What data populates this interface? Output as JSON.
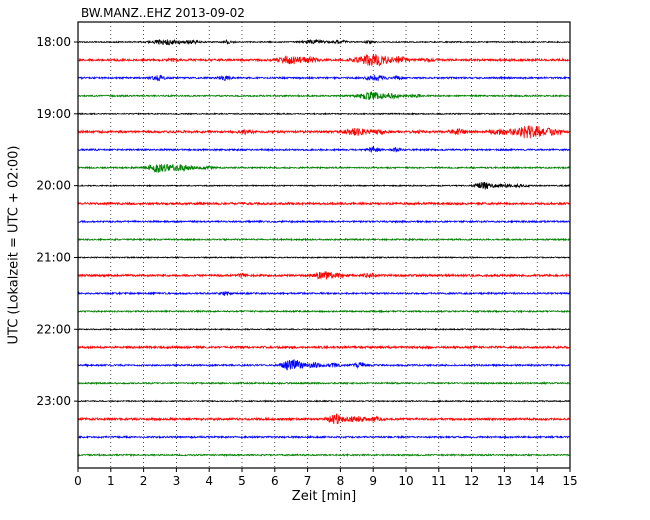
{
  "chart_data": {
    "type": "line",
    "subtype": "seismogram-dayplot",
    "title": "BW.MANZ..EHZ 2013-09-02",
    "xlabel": "Zeit  [min]",
    "ylabel": "UTC (Lokalzeit = UTC + 02:00)",
    "xlim": [
      0,
      15
    ],
    "xticks": [
      0,
      1,
      2,
      3,
      4,
      5,
      6,
      7,
      8,
      9,
      10,
      11,
      12,
      13,
      14,
      15
    ],
    "minutes_per_line": 15,
    "grid": "dotted-vertical",
    "hour_ticks": [
      {
        "label": "18:00",
        "trace_index": 0
      },
      {
        "label": "19:00",
        "trace_index": 4
      },
      {
        "label": "20:00",
        "trace_index": 8
      },
      {
        "label": "21:00",
        "trace_index": 12
      },
      {
        "label": "22:00",
        "trace_index": 16
      },
      {
        "label": "23:00",
        "trace_index": 20
      }
    ],
    "colors": {
      "black": "#000000",
      "red": "#ff0000",
      "blue": "#0000ff",
      "green": "#008000"
    },
    "burst_format": "[center_minute, width_minutes, amplitude_px]",
    "traces": [
      {
        "start": "18:00",
        "color": "#000000",
        "base": 0.55,
        "bursts": [
          [
            2.7,
            0.45,
            2.4
          ],
          [
            3.5,
            0.25,
            1.4
          ],
          [
            4.55,
            0.12,
            1.6
          ],
          [
            7.2,
            0.35,
            1.8
          ],
          [
            8.0,
            0.2,
            1.4
          ],
          [
            8.9,
            0.12,
            1.1
          ]
        ]
      },
      {
        "start": "18:15",
        "color": "#ff0000",
        "base": 1.05,
        "bursts": [
          [
            2.9,
            0.15,
            1.0
          ],
          [
            6.5,
            0.35,
            4.0
          ],
          [
            7.1,
            0.2,
            2.2
          ],
          [
            9.0,
            0.45,
            5.2
          ],
          [
            9.8,
            0.25,
            2.6
          ],
          [
            10.7,
            0.2,
            1.2
          ]
        ]
      },
      {
        "start": "18:30",
        "color": "#0000ff",
        "base": 0.8,
        "bursts": [
          [
            2.45,
            0.18,
            2.4
          ],
          [
            4.45,
            0.18,
            1.8
          ],
          [
            9.1,
            0.28,
            2.6
          ],
          [
            9.8,
            0.15,
            1.5
          ]
        ]
      },
      {
        "start": "18:45",
        "color": "#008000",
        "base": 0.7,
        "bursts": [
          [
            8.9,
            0.35,
            4.0
          ],
          [
            9.6,
            0.25,
            2.2
          ],
          [
            10.3,
            0.2,
            1.0
          ]
        ]
      },
      {
        "start": "19:00",
        "color": "#000000",
        "base": 0.55,
        "bursts": []
      },
      {
        "start": "19:15",
        "color": "#ff0000",
        "base": 1.05,
        "bursts": [
          [
            5.1,
            0.2,
            2.0
          ],
          [
            8.5,
            0.35,
            3.2
          ],
          [
            9.2,
            0.2,
            2.0
          ],
          [
            10.4,
            0.15,
            1.2
          ],
          [
            11.6,
            0.25,
            2.2
          ],
          [
            12.9,
            0.35,
            2.6
          ],
          [
            13.8,
            0.4,
            6.8
          ],
          [
            14.5,
            0.25,
            2.6
          ]
        ]
      },
      {
        "start": "19:30",
        "color": "#0000ff",
        "base": 0.8,
        "bursts": [
          [
            9.0,
            0.18,
            2.4
          ],
          [
            9.7,
            0.13,
            1.7
          ]
        ]
      },
      {
        "start": "19:45",
        "color": "#008000",
        "base": 0.7,
        "bursts": [
          [
            2.5,
            0.4,
            4.4
          ],
          [
            3.2,
            0.3,
            2.4
          ],
          [
            3.9,
            0.25,
            1.3
          ]
        ]
      },
      {
        "start": "20:00",
        "color": "#000000",
        "base": 0.55,
        "bursts": [
          [
            12.35,
            0.22,
            3.4
          ],
          [
            12.9,
            0.35,
            1.6
          ],
          [
            13.5,
            0.25,
            1.0
          ]
        ]
      },
      {
        "start": "20:15",
        "color": "#ff0000",
        "base": 1.05,
        "bursts": []
      },
      {
        "start": "20:30",
        "color": "#0000ff",
        "base": 0.8,
        "bursts": []
      },
      {
        "start": "20:45",
        "color": "#008000",
        "base": 0.7,
        "bursts": []
      },
      {
        "start": "21:00",
        "color": "#000000",
        "base": 0.55,
        "bursts": []
      },
      {
        "start": "21:15",
        "color": "#ff0000",
        "base": 1.05,
        "bursts": [
          [
            5.0,
            0.12,
            1.6
          ],
          [
            7.5,
            0.28,
            3.4
          ],
          [
            8.0,
            0.15,
            1.6
          ],
          [
            8.9,
            0.18,
            1.8
          ]
        ]
      },
      {
        "start": "21:30",
        "color": "#0000ff",
        "base": 0.8,
        "bursts": [
          [
            4.5,
            0.13,
            1.5
          ]
        ]
      },
      {
        "start": "21:45",
        "color": "#008000",
        "base": 0.7,
        "bursts": []
      },
      {
        "start": "22:00",
        "color": "#000000",
        "base": 0.55,
        "bursts": []
      },
      {
        "start": "22:15",
        "color": "#ff0000",
        "base": 1.05,
        "bursts": []
      },
      {
        "start": "22:30",
        "color": "#0000ff",
        "base": 0.8,
        "bursts": [
          [
            6.55,
            0.3,
            5.8
          ],
          [
            7.2,
            0.2,
            2.6
          ],
          [
            7.8,
            0.18,
            2.0
          ],
          [
            8.6,
            0.18,
            2.2
          ]
        ]
      },
      {
        "start": "22:45",
        "color": "#008000",
        "base": 0.7,
        "bursts": []
      },
      {
        "start": "23:00",
        "color": "#000000",
        "base": 0.55,
        "bursts": []
      },
      {
        "start": "23:15",
        "color": "#ff0000",
        "base": 1.05,
        "bursts": [
          [
            7.85,
            0.22,
            4.4
          ],
          [
            8.5,
            0.3,
            2.4
          ],
          [
            9.1,
            0.2,
            1.6
          ]
        ]
      },
      {
        "start": "23:30",
        "color": "#0000ff",
        "base": 0.8,
        "bursts": []
      },
      {
        "start": "23:45",
        "color": "#008000",
        "base": 0.7,
        "bursts": []
      }
    ]
  }
}
